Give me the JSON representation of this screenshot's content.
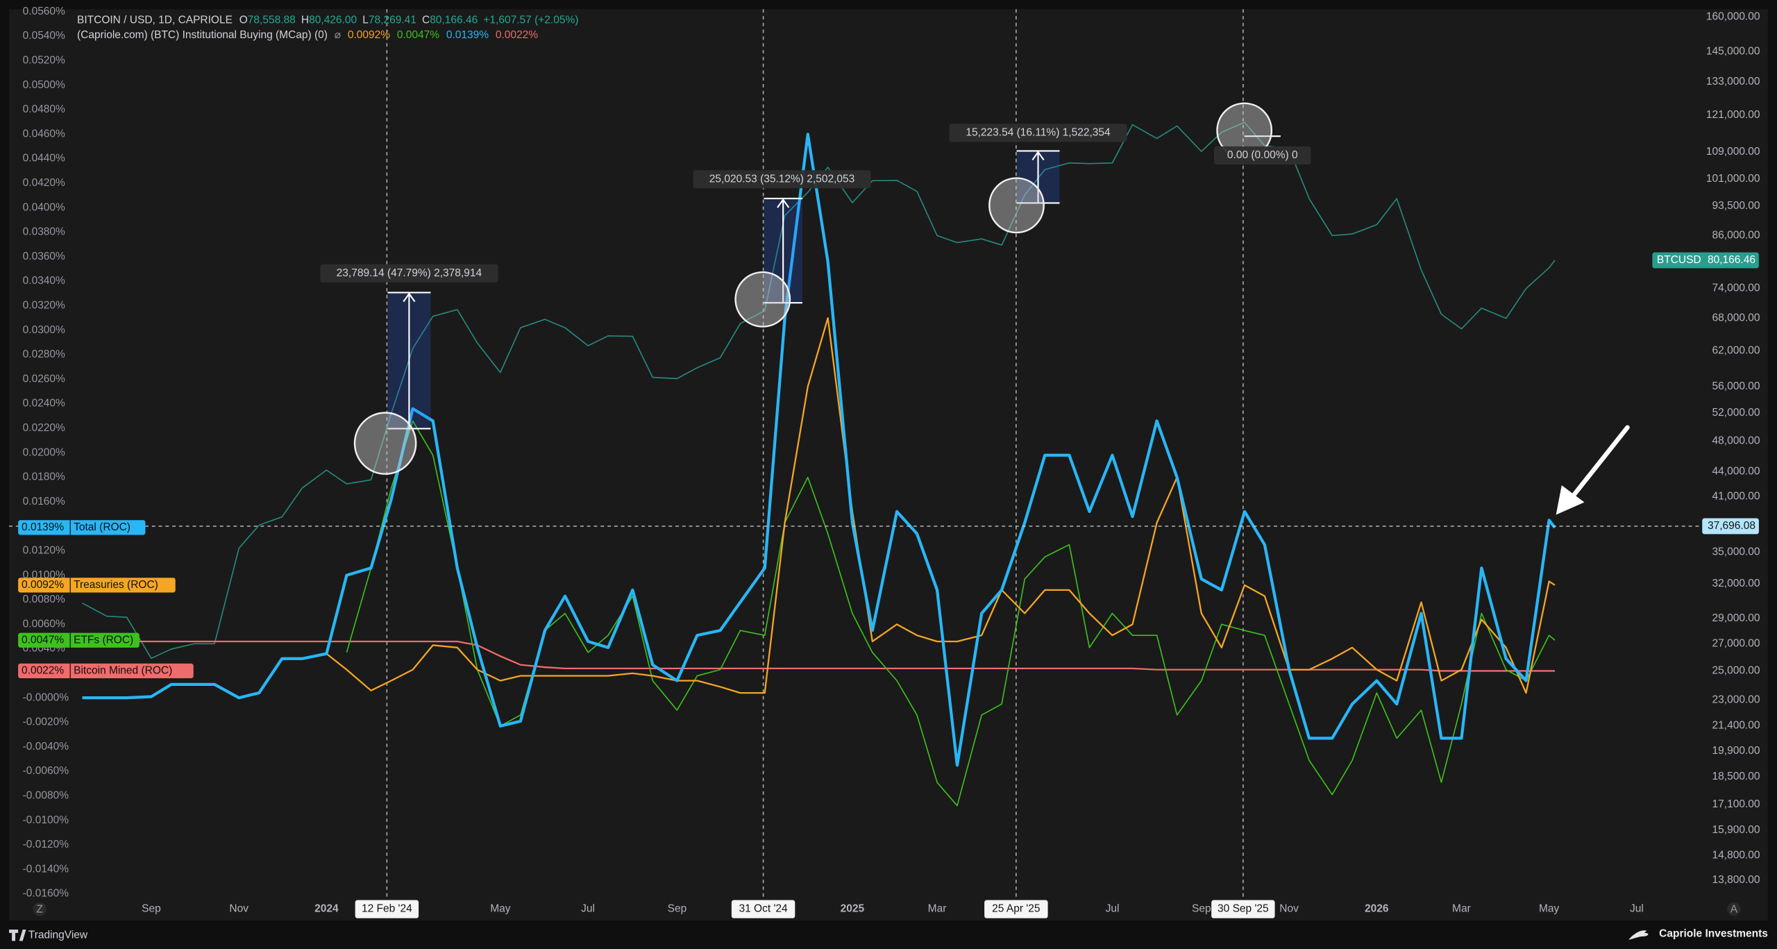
{
  "header": {
    "symbol": "BITCOIN / USD, 1D, CAPRIOLE",
    "quote": [
      {
        "key": "O",
        "value": "78,558.88"
      },
      {
        "key": "H",
        "value": "80,426.00"
      },
      {
        "key": "L",
        "value": "78,269.41"
      },
      {
        "key": "C",
        "value": "80,166.46"
      }
    ],
    "change": "+1,607.57 (+2.05%)",
    "indicator": "(Capriole.com) (BTC) Institutional Buying (MCap) (0)"
  },
  "chart_data": {
    "type": "line",
    "x": [
      "2023-07-15",
      "2023-08-01",
      "2023-08-15",
      "2023-09-01",
      "2023-09-15",
      "2023-10-01",
      "2023-10-15",
      "2023-11-01",
      "2023-11-15",
      "2023-12-01",
      "2023-12-15",
      "2024-01-01",
      "2024-01-15",
      "2024-02-01",
      "2024-02-15",
      "2024-03-01",
      "2024-03-15",
      "2024-04-01",
      "2024-04-15",
      "2024-05-01",
      "2024-05-15",
      "2024-06-01",
      "2024-06-15",
      "2024-07-01",
      "2024-07-15",
      "2024-08-01",
      "2024-08-15",
      "2024-09-01",
      "2024-09-15",
      "2024-10-01",
      "2024-10-15",
      "2024-11-01",
      "2024-11-15",
      "2024-12-01",
      "2024-12-15",
      "2025-01-01",
      "2025-01-15",
      "2025-02-01",
      "2025-02-15",
      "2025-03-01",
      "2025-03-15",
      "2025-04-01",
      "2025-04-15",
      "2025-05-01",
      "2025-05-15",
      "2025-06-01",
      "2025-06-15",
      "2025-07-01",
      "2025-07-15",
      "2025-08-01",
      "2025-08-15",
      "2025-09-01",
      "2025-09-15",
      "2025-10-01",
      "2025-10-15",
      "2025-11-01",
      "2025-11-15",
      "2025-12-01",
      "2025-12-15",
      "2026-01-01",
      "2026-01-15",
      "2026-02-01",
      "2026-02-15",
      "2026-03-01",
      "2026-03-15",
      "2026-04-01",
      "2026-04-15",
      "2026-05-01",
      "2026-05-05"
    ],
    "xlim": [
      "2023-05-25",
      "2026-08-14"
    ],
    "xticks": [
      {
        "value": "2023-09-01",
        "label": "Sep"
      },
      {
        "value": "2023-11-01",
        "label": "Nov"
      },
      {
        "value": "2024-01-01",
        "label": "2024"
      },
      {
        "value": "2024-05-01",
        "label": "May"
      },
      {
        "value": "2024-07-01",
        "label": "Jul"
      },
      {
        "value": "2024-09-01",
        "label": "Sep"
      },
      {
        "value": "2025-01-01",
        "label": "2025"
      },
      {
        "value": "2025-03-01",
        "label": "Mar"
      },
      {
        "value": "2025-07-01",
        "label": "Jul"
      },
      {
        "value": "2025-09-01",
        "label": "Sep"
      },
      {
        "value": "2025-11-01",
        "label": "Nov"
      },
      {
        "value": "2026-01-01",
        "label": "2026"
      },
      {
        "value": "2026-03-01",
        "label": "Mar"
      },
      {
        "value": "2026-05-01",
        "label": "May"
      },
      {
        "value": "2026-07-01",
        "label": "Jul"
      }
    ],
    "ylim": [
      -0.0166,
      0.0562
    ],
    "yticks": [
      {
        "value": 0.056,
        "label": "0.0560%"
      },
      {
        "value": 0.054,
        "label": "0.0540%"
      },
      {
        "value": 0.052,
        "label": "0.0520%"
      },
      {
        "value": 0.05,
        "label": "0.0500%"
      },
      {
        "value": 0.048,
        "label": "0.0480%"
      },
      {
        "value": 0.046,
        "label": "0.0460%"
      },
      {
        "value": 0.044,
        "label": "0.0440%"
      },
      {
        "value": 0.042,
        "label": "0.0420%"
      },
      {
        "value": 0.04,
        "label": "0.0400%"
      },
      {
        "value": 0.038,
        "label": "0.0380%"
      },
      {
        "value": 0.036,
        "label": "0.0360%"
      },
      {
        "value": 0.034,
        "label": "0.0340%"
      },
      {
        "value": 0.032,
        "label": "0.0320%"
      },
      {
        "value": 0.03,
        "label": "0.0300%"
      },
      {
        "value": 0.028,
        "label": "0.0280%"
      },
      {
        "value": 0.026,
        "label": "0.0260%"
      },
      {
        "value": 0.024,
        "label": "0.0240%"
      },
      {
        "value": 0.022,
        "label": "0.0220%"
      },
      {
        "value": 0.02,
        "label": "0.0200%"
      },
      {
        "value": 0.018,
        "label": "0.0180%"
      },
      {
        "value": 0.016,
        "label": "0.0160%"
      },
      {
        "value": 0.014,
        "label": "0.0140%"
      },
      {
        "value": 0.012,
        "label": "0.0120%"
      },
      {
        "value": 0.01,
        "label": "0.0100%"
      },
      {
        "value": 0.008,
        "label": "0.0080%"
      },
      {
        "value": 0.006,
        "label": "0.0060%"
      },
      {
        "value": 0.004,
        "label": "0.0040%"
      },
      {
        "value": 0.002,
        "label": "0.0020%"
      },
      {
        "value": 0,
        "label": "-0.0000%"
      },
      {
        "value": -0.002,
        "label": "-0.0020%"
      },
      {
        "value": -0.004,
        "label": "-0.0040%"
      },
      {
        "value": -0.006,
        "label": "-0.0060%"
      },
      {
        "value": -0.008,
        "label": "-0.0080%"
      },
      {
        "value": -0.01,
        "label": "-0.0100%"
      },
      {
        "value": -0.012,
        "label": "-0.0120%"
      },
      {
        "value": -0.014,
        "label": "-0.0140%"
      },
      {
        "value": -0.016,
        "label": "-0.0160%"
      }
    ],
    "y2lim": [
      13000,
      163500
    ],
    "y2scale": "log",
    "y2ticks": [
      {
        "value": 160000,
        "label": "160,000.00"
      },
      {
        "value": 145000,
        "label": "145,000.00"
      },
      {
        "value": 133000,
        "label": "133,000.00"
      },
      {
        "value": 121000,
        "label": "121,000.00"
      },
      {
        "value": 109000,
        "label": "109,000.00"
      },
      {
        "value": 101000,
        "label": "101,000.00"
      },
      {
        "value": 93500,
        "label": "93,500.00"
      },
      {
        "value": 86000,
        "label": "86,000.00"
      },
      {
        "value": 74000,
        "label": "74,000.00"
      },
      {
        "value": 68000,
        "label": "68,000.00"
      },
      {
        "value": 62000,
        "label": "62,000.00"
      },
      {
        "value": 56000,
        "label": "56,000.00"
      },
      {
        "value": 52000,
        "label": "52,000.00"
      },
      {
        "value": 48000,
        "label": "48,000.00"
      },
      {
        "value": 44000,
        "label": "44,000.00"
      },
      {
        "value": 41000,
        "label": "41,000.00"
      },
      {
        "value": 35000,
        "label": "35,000.00"
      },
      {
        "value": 32000,
        "label": "32,000.00"
      },
      {
        "value": 29000,
        "label": "29,000.00"
      },
      {
        "value": 27000,
        "label": "27,000.00"
      },
      {
        "value": 25000,
        "label": "25,000.00"
      },
      {
        "value": 23000,
        "label": "23,000.00"
      },
      {
        "value": 21400,
        "label": "21,400.00"
      },
      {
        "value": 19900,
        "label": "19,900.00"
      },
      {
        "value": 18500,
        "label": "18,500.00"
      },
      {
        "value": 17100,
        "label": "17,100.00"
      },
      {
        "value": 15900,
        "label": "15,900.00"
      },
      {
        "value": 14800,
        "label": "14,800.00"
      },
      {
        "value": 13800,
        "label": "13,800.00"
      }
    ],
    "series": [
      {
        "name": "Total (ROC)",
        "color": "#29b6f6",
        "tag": {
          "value": 0.0139,
          "label": "0.0139%"
        },
        "values": [
          0,
          0,
          0,
          0.0001,
          0.0011,
          0.0011,
          0.0011,
          0,
          0.0004,
          0.0032,
          0.0032,
          0.0036,
          0.01,
          0.0106,
          0.0162,
          0.0236,
          0.0226,
          0.0106,
          0.0041,
          -0.0023,
          -0.0019,
          0.0055,
          0.0083,
          0.0046,
          0.0041,
          0.0088,
          0.0027,
          0.0014,
          0.0051,
          0.0055,
          0.0078,
          0.0106,
          0.031,
          0.046,
          0.0356,
          0.0143,
          0.0055,
          0.0152,
          0.0134,
          0.0088,
          -0.0055,
          0.0069,
          0.0088,
          0.0143,
          0.0198,
          0.0198,
          0.0152,
          0.0198,
          0.0148,
          0.0226,
          0.018,
          0.0097,
          0.0088,
          0.0152,
          0.0125,
          0.0023,
          -0.0033,
          -0.0033,
          -0.0005,
          0.0014,
          -0.0005,
          0.0069,
          -0.0033,
          -0.0033,
          0.0106,
          0.0032,
          0.0014,
          0.0145,
          0.0139
        ]
      },
      {
        "name": "Treasuries (ROC)",
        "color": "#f5a623",
        "tag": {
          "value": 0.0092,
          "label": "0.0092%"
        },
        "values": [
          0,
          0,
          0,
          0.0001,
          0.0011,
          0.0011,
          0.0011,
          0,
          0.0004,
          0.0032,
          0.0032,
          0.0036,
          0.0023,
          0.0006,
          0.0014,
          0.0023,
          0.0043,
          0.0041,
          0.0023,
          0.0014,
          0.0018,
          0.0018,
          0.0018,
          0.0018,
          0.0018,
          0.002,
          0.0018,
          0.0014,
          0.0014,
          0.0009,
          0.0004,
          0.0004,
          0.0143,
          0.0254,
          0.031,
          0.0152,
          0.0046,
          0.006,
          0.0051,
          0.0046,
          0.0046,
          0.0051,
          0.0088,
          0.0069,
          0.0088,
          0.0088,
          0.0069,
          0.0051,
          0.006,
          0.0143,
          0.018,
          0.0069,
          0.0041,
          0.0092,
          0.0083,
          0.0023,
          0.0023,
          0.0032,
          0.0041,
          0.0023,
          0.0014,
          0.0078,
          0.0014,
          0.0023,
          0.0064,
          0.0041,
          0.0004,
          0.0095,
          0.0092
        ]
      },
      {
        "name": "ETFs (ROC)",
        "color": "#3cc21c",
        "tag": {
          "value": 0.0047,
          "label": "0.0047%"
        },
        "values": [
          null,
          null,
          null,
          null,
          null,
          null,
          null,
          null,
          null,
          null,
          null,
          null,
          0.0037,
          0.0106,
          0.0171,
          0.0226,
          0.0198,
          0.0106,
          0.0023,
          -0.0023,
          -0.0014,
          0.0055,
          0.0069,
          0.0037,
          0.0051,
          0.0083,
          0.0014,
          -0.001,
          0.0018,
          0.0023,
          0.0055,
          0.0051,
          0.0143,
          0.018,
          0.0134,
          0.0069,
          0.0037,
          0.0014,
          -0.0014,
          -0.0069,
          -0.0088,
          -0.0014,
          -0.0005,
          0.0097,
          0.0115,
          0.0125,
          0.0041,
          0.0069,
          0.0051,
          0.0051,
          -0.0014,
          0.0014,
          0.006,
          0.0055,
          0.0051,
          -0.0005,
          -0.0051,
          -0.0079,
          -0.0051,
          0.0004,
          -0.0033,
          -0.001,
          -0.0069,
          -0.0005,
          0.0069,
          0.0023,
          0.0014,
          0.0051,
          0.0047
        ]
      },
      {
        "name": "Bitcoin Mined (ROC)",
        "color": "#f06b6b",
        "tag": {
          "value": 0.0022,
          "label": "0.0022%"
        },
        "values": [
          null,
          null,
          0.0046,
          0.0046,
          0.0046,
          0.0046,
          0.0046,
          0.0046,
          0.0046,
          0.0046,
          0.0046,
          0.0046,
          0.0046,
          0.0046,
          0.0046,
          0.0046,
          0.0046,
          0.0046,
          0.0043,
          0.0034,
          0.0027,
          0.0025,
          0.0024,
          0.0024,
          0.0024,
          0.0024,
          0.0024,
          0.0024,
          0.0024,
          0.0024,
          0.0024,
          0.0024,
          0.0024,
          0.0024,
          0.0024,
          0.0024,
          0.0024,
          0.0024,
          0.0024,
          0.0024,
          0.0024,
          0.0024,
          0.0024,
          0.0024,
          0.0024,
          0.0024,
          0.0024,
          0.0024,
          0.0024,
          0.0023,
          0.0023,
          0.0023,
          0.0023,
          0.0023,
          0.0023,
          0.0023,
          0.0023,
          0.0023,
          0.0023,
          0.0023,
          0.0023,
          0.0023,
          0.0022,
          0.0022,
          0.0022,
          0.0022,
          0.0022,
          0.0022,
          0.0022
        ]
      },
      {
        "name": "BTCUSD",
        "color": "#2a9d8f",
        "axis": "y2",
        "tag": {
          "value": 80166.46,
          "label": "80,166.46"
        },
        "values": [
          30300,
          29200,
          29100,
          25900,
          26600,
          27000,
          27000,
          35400,
          37800,
          38700,
          42000,
          44200,
          42500,
          43000,
          51900,
          62400,
          68400,
          69700,
          63400,
          58300,
          66200,
          67800,
          66200,
          62900,
          64700,
          64600,
          57500,
          57300,
          59100,
          60800,
          67000,
          69500,
          91000,
          97200,
          104400,
          94400,
          100500,
          100600,
          97500,
          86000,
          84300,
          85200,
          83700,
          96500,
          103700,
          105700,
          105500,
          105700,
          117800,
          113300,
          117400,
          109200,
          115300,
          118600,
          111000,
          110000,
          95500,
          86000,
          86400,
          88700,
          95500,
          78000,
          68800,
          66000,
          70000,
          68000,
          74000,
          78500,
          80166.46
        ]
      }
    ],
    "crosshair": {
      "value": 37696.08,
      "label": "37,696.08"
    },
    "events": [
      {
        "date": "2024-02-12",
        "label": "12 Feb '24"
      },
      {
        "date": "2024-10-31",
        "label": "31 Oct '24"
      },
      {
        "date": "2025-04-25",
        "label": "25 Apr '25"
      },
      {
        "date": "2025-09-30",
        "label": "30 Sep '25"
      }
    ],
    "measures": [
      "23,789.14 (47.79%) 2,378,914",
      "25,020.53 (35.12%) 2,502,053",
      "15,223.54 (16.11%) 1,522,354",
      "0.00 (0.00%) 0"
    ]
  },
  "footer": {
    "brand": "TradingView",
    "credit": "Capriole Investments",
    "axis_buttons": [
      "Z",
      "A"
    ]
  }
}
